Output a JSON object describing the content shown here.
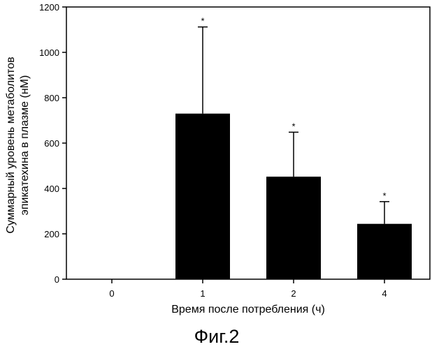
{
  "chart_data": {
    "type": "bar",
    "categories": [
      "0",
      "1",
      "2",
      "4"
    ],
    "values": [
      0,
      730,
      452,
      244
    ],
    "errors": [
      0,
      382,
      196,
      98
    ],
    "significance_marks": [
      "",
      "*",
      "*",
      "*"
    ],
    "ylim": [
      0,
      1200
    ],
    "yticks": [
      0,
      200,
      400,
      600,
      800,
      1000,
      1200
    ],
    "xlabel": "Время после потребления (ч)",
    "ylabel_lines": [
      "Суммарный уровень метаболитов",
      "эпикатехина в плазме (нМ)"
    ],
    "bar_color": "#000000",
    "grid": false
  },
  "figure": {
    "caption": "Фиг.2"
  }
}
